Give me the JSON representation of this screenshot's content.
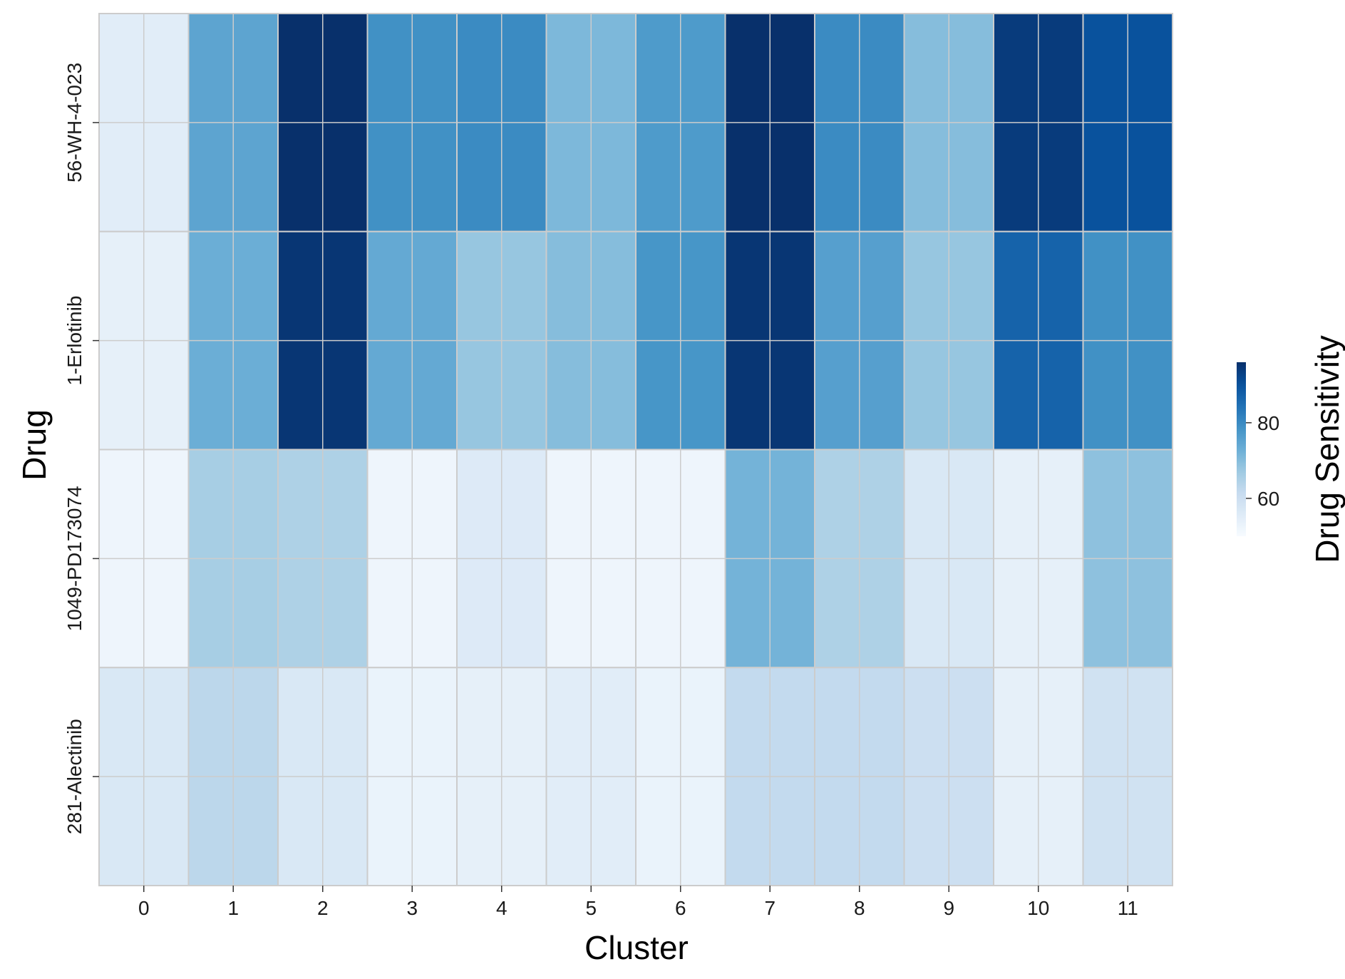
{
  "chart_data": {
    "type": "heatmap",
    "title": "",
    "xlabel": "Cluster",
    "ylabel": "Drug",
    "x_categories": [
      "0",
      "1",
      "2",
      "3",
      "4",
      "5",
      "6",
      "7",
      "8",
      "9",
      "10",
      "11"
    ],
    "y_categories": [
      "56-WH-4-023",
      "1-Erlotinib",
      "1049-PD173074",
      "281-Alectinib"
    ],
    "values": [
      [
        55,
        75,
        96,
        79,
        80,
        71,
        77,
        96,
        80,
        70,
        94,
        90
      ],
      [
        54,
        73,
        95,
        74,
        68,
        70,
        78,
        95,
        76,
        68,
        87,
        79
      ],
      [
        52,
        66,
        65,
        52,
        56,
        52,
        52,
        72,
        65,
        57,
        54,
        69
      ],
      [
        57,
        63,
        57,
        53,
        54,
        55,
        53,
        62,
        62,
        60,
        54,
        59
      ]
    ],
    "colorbar": {
      "label": "Drug Sensitivity",
      "min": 50,
      "max": 96,
      "ticks": [
        60,
        80
      ],
      "colormap": "Blues"
    },
    "grid": true,
    "cell_border_color": "#cccccc"
  }
}
